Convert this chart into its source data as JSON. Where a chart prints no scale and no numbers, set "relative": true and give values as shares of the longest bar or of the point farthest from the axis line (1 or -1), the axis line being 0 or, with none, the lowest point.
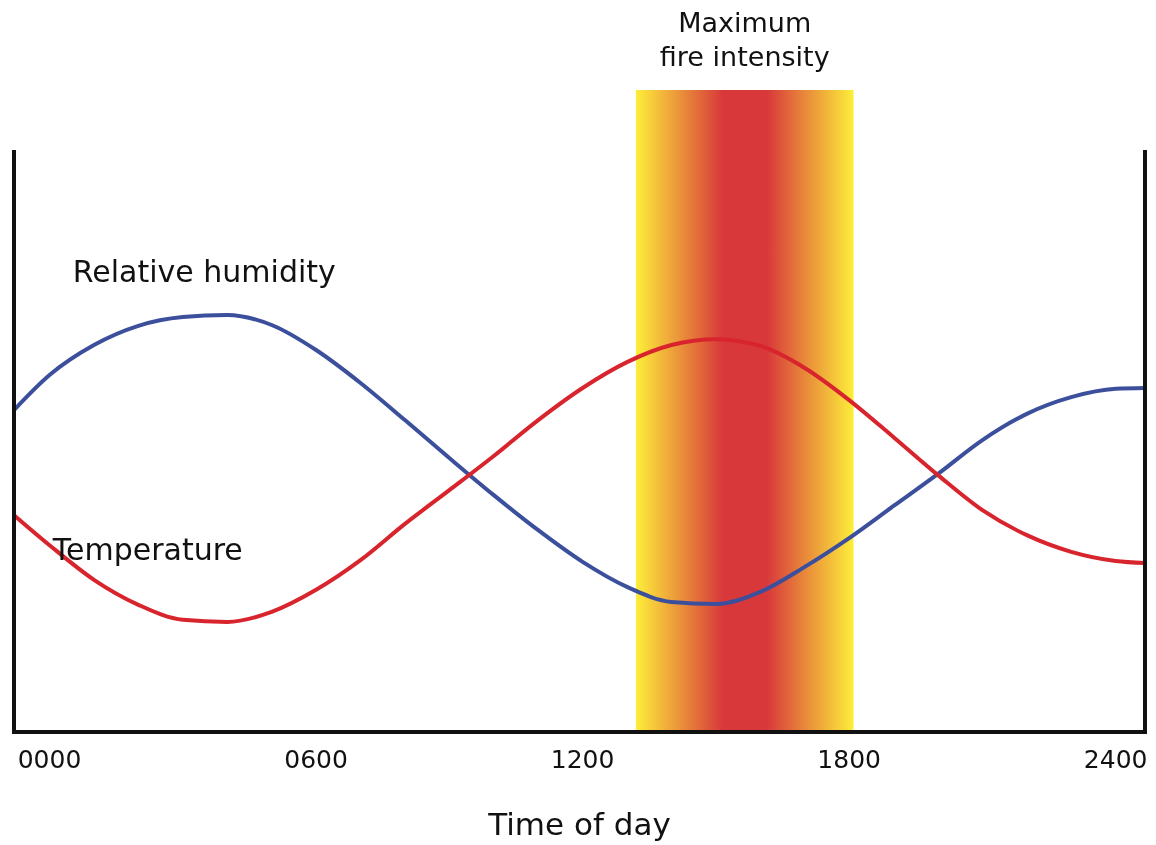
{
  "chart_data": {
    "type": "line",
    "relative": true,
    "xlabel": "Time of day",
    "xlim": [
      -80,
      2466
    ],
    "xticks": [
      {
        "value": 0,
        "label": "0000"
      },
      {
        "value": 600,
        "label": "0600"
      },
      {
        "value": 1200,
        "label": "1200"
      },
      {
        "value": 1800,
        "label": "1800"
      },
      {
        "value": 2400,
        "label": "2400"
      }
    ],
    "x": [
      -80,
      0,
      100,
      200,
      300,
      400,
      500,
      600,
      700,
      800,
      900,
      1000,
      1100,
      1200,
      1300,
      1400,
      1500,
      1600,
      1700,
      1800,
      1900,
      2000,
      2100,
      2200,
      2300,
      2400,
      2466
    ],
    "series": [
      {
        "name": "Relative humidity",
        "color": "#3b4f9c",
        "values": [
          0.772,
          0.856,
          0.928,
          0.974,
          0.995,
          1.0,
          0.976,
          0.916,
          0.837,
          0.748,
          0.657,
          0.568,
          0.484,
          0.408,
          0.348,
          0.312,
          0.307,
          0.336,
          0.396,
          0.465,
          0.542,
          0.619,
          0.7,
          0.763,
          0.803,
          0.823,
          0.825
        ]
      },
      {
        "name": "Temperature",
        "color": "#d8242c",
        "values": [
          0.52,
          0.448,
          0.365,
          0.305,
          0.269,
          0.264,
          0.288,
          0.341,
          0.412,
          0.499,
          0.58,
          0.662,
          0.748,
          0.825,
          0.887,
          0.928,
          0.942,
          0.926,
          0.873,
          0.796,
          0.707,
          0.616,
          0.532,
          0.472,
          0.432,
          0.41,
          0.405
        ]
      }
    ],
    "bands": [
      {
        "axis": "x",
        "from": 1320,
        "to": 1810,
        "label": "Maximum fire intensity",
        "color": "#d8383a"
      }
    ],
    "grid": false
  }
}
